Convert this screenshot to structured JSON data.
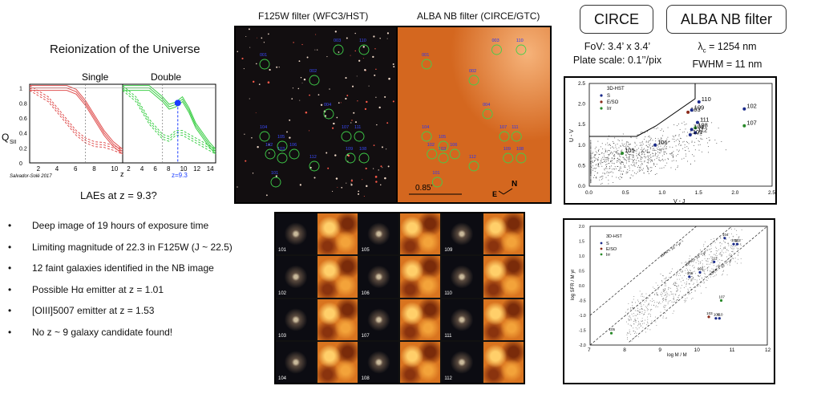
{
  "reionization": {
    "title": "Reionization of the Universe",
    "single_label": "Single",
    "double_label": "Double",
    "y_axis_label": "Q",
    "y_axis_sub": "SII",
    "x_axis_label": "z",
    "credit": "Salvador-Solé 2017",
    "z_marker": "z=9.3",
    "question": "LAEs at  z = 9.3?"
  },
  "image_titles": {
    "f125w": "F125W filter (WFC3/HST)",
    "alba": "ALBA NB filter (CIRCE/GTC)"
  },
  "hst_labels": [
    "001",
    "002",
    "003",
    "004",
    "101",
    "102",
    "103",
    "104",
    "105",
    "106",
    "107",
    "108",
    "109",
    "110",
    "111",
    "112"
  ],
  "nb_labels": [
    "001",
    "002",
    "003",
    "004",
    "101",
    "102",
    "103",
    "104",
    "105",
    "106",
    "107",
    "108",
    "109",
    "110",
    "111",
    "112"
  ],
  "nb_scale": "0.85’",
  "compass_n": "N",
  "compass_e": "E",
  "circe": {
    "box_label": "CIRCE",
    "fov": "FoV: 3.4’ x 3.4’",
    "plate_scale": "Plate scale: 0.1’’/pix"
  },
  "alba": {
    "box_label": "ALBA NB filter",
    "lambda_symbol": "λ",
    "lambda_sub": "c",
    "lambda_value": " = 1254 nm",
    "fwhm": "FWHM = 11 nm"
  },
  "bullets": [
    "Deep image of 19 hours of exposure time",
    "Limiting magnitude of 22.3 in F125W (J ~ 22.5)",
    "12  faint galaxies identified in the NB image",
    "Possible Hα emitter at z = 1.01",
    "[OIII]5007 emitter at z = 1.53",
    "No z ~ 9 galaxy candidate found!"
  ],
  "thumbs": {
    "rows": [
      [
        "101",
        "105",
        "109"
      ],
      [
        "102",
        "106",
        "110"
      ],
      [
        "103",
        "107",
        "111"
      ],
      [
        "104",
        "108",
        "112"
      ]
    ]
  },
  "chart_data": [
    {
      "type": "line",
      "panel": "Single",
      "xlabel": "z",
      "ylabel": "Q_SII",
      "xlim": [
        1,
        11
      ],
      "ylim": [
        0,
        1.05
      ],
      "xticks": [
        2,
        4,
        6,
        8,
        10
      ],
      "yticks": [
        0,
        0.2,
        0.4,
        0.6,
        0.8,
        1
      ],
      "series": [
        {
          "color": "#e05050",
          "style": "solid",
          "x": [
            1,
            3,
            5,
            6,
            7,
            8,
            9,
            10,
            11
          ],
          "y": [
            1,
            1,
            1,
            0.95,
            0.8,
            0.6,
            0.4,
            0.25,
            0.15
          ]
        },
        {
          "color": "#e05050",
          "style": "dashed",
          "x": [
            1,
            3,
            5,
            6,
            7,
            8,
            9,
            10,
            11
          ],
          "y": [
            1,
            0.85,
            0.55,
            0.4,
            0.3,
            0.25,
            0.24,
            0.2,
            0.15
          ]
        }
      ]
    },
    {
      "type": "line",
      "panel": "Double",
      "xlabel": "z",
      "xlim": [
        1,
        15
      ],
      "ylim": [
        0,
        1.05
      ],
      "xticks": [
        2,
        4,
        6,
        8,
        10,
        12,
        14
      ],
      "series": [
        {
          "color": "#3fcf4a",
          "style": "solid",
          "x": [
            1,
            3,
            5,
            7,
            8,
            9,
            10,
            11,
            12,
            14,
            15
          ],
          "y": [
            1,
            1,
            1,
            0.85,
            0.75,
            0.78,
            0.85,
            0.7,
            0.5,
            0.25,
            0.15
          ]
        },
        {
          "color": "#3fcf4a",
          "style": "dashed",
          "x": [
            1,
            3,
            5,
            7,
            8,
            9,
            10,
            11,
            12,
            14,
            15
          ],
          "y": [
            1,
            0.85,
            0.55,
            0.35,
            0.32,
            0.4,
            0.4,
            0.35,
            0.3,
            0.2,
            0.15
          ]
        }
      ],
      "marker": {
        "x": 9.3,
        "y": 0.8,
        "color": "#1a3cff"
      }
    },
    {
      "type": "scatter",
      "panel": "UVJ",
      "xlabel": "V - J",
      "ylabel": "U - V",
      "xlim": [
        0,
        2.5
      ],
      "ylim": [
        0,
        2.5
      ],
      "xticks": [
        0,
        0.5,
        1,
        1.5,
        2,
        2.5
      ],
      "yticks": [
        0,
        0.5,
        1,
        1.5,
        2,
        2.5
      ],
      "legend": [
        "3D-HST",
        "S",
        "E/SO",
        "Irr"
      ],
      "points": [
        {
          "label": "105",
          "x": 0.45,
          "y": 0.8,
          "color": "#2a8a2a"
        },
        {
          "label": "106",
          "x": 0.9,
          "y": 1.0,
          "color": "#1a2a8a"
        },
        {
          "label": "103",
          "x": 1.35,
          "y": 1.8,
          "color": "#8a2a1a"
        },
        {
          "label": "109",
          "x": 1.4,
          "y": 1.85,
          "color": "#1a2a8a"
        },
        {
          "label": "110",
          "x": 1.5,
          "y": 2.05,
          "color": "#1a2a8a"
        },
        {
          "label": "111",
          "x": 1.48,
          "y": 1.55,
          "color": "#1a2a8a"
        },
        {
          "label": "108",
          "x": 1.45,
          "y": 1.42,
          "color": "#2a8a2a"
        },
        {
          "label": "104",
          "x": 1.4,
          "y": 1.38,
          "color": "#1a2a8a"
        },
        {
          "label": "112",
          "x": 1.45,
          "y": 1.3,
          "color": "#1a2a8a"
        },
        {
          "label": "101",
          "x": 1.38,
          "y": 1.25,
          "color": "#1a2a8a"
        },
        {
          "label": "102",
          "x": 2.12,
          "y": 1.88,
          "color": "#1a2a8a"
        },
        {
          "label": "107",
          "x": 2.12,
          "y": 1.47,
          "color": "#2a8a2a"
        }
      ]
    },
    {
      "type": "scatter",
      "panel": "SFR-Mass",
      "xlabel": "log M / M",
      "ylabel": "log SFR / M yr",
      "xlim": [
        7,
        12
      ],
      "ylim": [
        -2,
        2
      ],
      "xticks": [
        7,
        8,
        9,
        10,
        11,
        12
      ],
      "yticks": [
        -2.0,
        -1.5,
        -1.0,
        -0.5,
        0.0,
        0.5,
        1.0,
        1.5,
        2.0
      ],
      "legend": [
        "3D-HST",
        "S",
        "E/SO",
        "Irr"
      ],
      "lines": [
        "sSFR = 10⁻⁸ yr⁻¹",
        "sSFR = 10⁻⁹ yr⁻¹",
        "sSFR = 10⁻¹⁰ yr⁻¹"
      ],
      "points": [
        {
          "label": "105",
          "x": 7.6,
          "y": -1.6,
          "color": "#2a8a2a"
        },
        {
          "label": "106",
          "x": 9.8,
          "y": 0.3,
          "color": "#1a2a8a"
        },
        {
          "label": "001",
          "x": 10.1,
          "y": 0.45,
          "color": "#1a2a8a"
        },
        {
          "label": "111",
          "x": 10.5,
          "y": 0.8,
          "color": "#1a2a8a"
        },
        {
          "label": "104",
          "x": 10.8,
          "y": 1.6,
          "color": "#1a2a8a"
        },
        {
          "label": "101",
          "x": 11.05,
          "y": 1.4,
          "color": "#1a2a8a"
        },
        {
          "label": "102",
          "x": 11.15,
          "y": 1.4,
          "color": "#1a2a8a"
        },
        {
          "label": "107",
          "x": 10.7,
          "y": -0.5,
          "color": "#2a8a2a"
        },
        {
          "label": "103",
          "x": 10.35,
          "y": -1.05,
          "color": "#8a2a1a"
        },
        {
          "label": "109",
          "x": 10.55,
          "y": -1.1,
          "color": "#1a2a8a"
        },
        {
          "label": "110",
          "x": 10.65,
          "y": -1.1,
          "color": "#1a2a8a"
        }
      ]
    }
  ],
  "colors": {
    "red_curve": "#e05050",
    "green_curve": "#3fcf4a",
    "blue_marker": "#1a3cff",
    "nb_orange": "#d9741f",
    "label_blue": "#2233ff"
  }
}
